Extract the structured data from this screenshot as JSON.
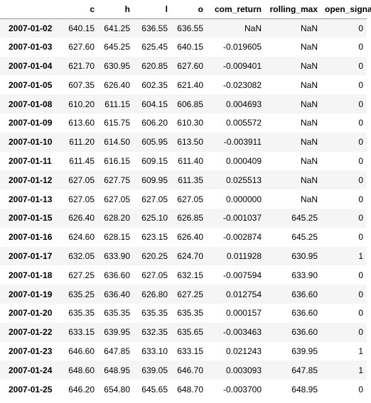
{
  "columns": [
    "",
    "c",
    "h",
    "l",
    "o",
    "com_return",
    "rolling_max",
    "open_signal"
  ],
  "rows": [
    [
      "2007-01-02",
      "640.15",
      "641.25",
      "636.55",
      "636.55",
      "NaN",
      "NaN",
      "0"
    ],
    [
      "2007-01-03",
      "627.60",
      "645.25",
      "625.45",
      "640.15",
      "-0.019605",
      "NaN",
      "0"
    ],
    [
      "2007-01-04",
      "621.70",
      "630.95",
      "620.85",
      "627.60",
      "-0.009401",
      "NaN",
      "0"
    ],
    [
      "2007-01-05",
      "607.35",
      "626.40",
      "602.35",
      "621.40",
      "-0.023082",
      "NaN",
      "0"
    ],
    [
      "2007-01-08",
      "610.20",
      "611.15",
      "604.15",
      "606.85",
      "0.004693",
      "NaN",
      "0"
    ],
    [
      "2007-01-09",
      "613.60",
      "615.75",
      "606.20",
      "610.30",
      "0.005572",
      "NaN",
      "0"
    ],
    [
      "2007-01-10",
      "611.20",
      "614.50",
      "605.95",
      "613.50",
      "-0.003911",
      "NaN",
      "0"
    ],
    [
      "2007-01-11",
      "611.45",
      "616.15",
      "609.15",
      "611.40",
      "0.000409",
      "NaN",
      "0"
    ],
    [
      "2007-01-12",
      "627.05",
      "627.75",
      "609.95",
      "611.35",
      "0.025513",
      "NaN",
      "0"
    ],
    [
      "2007-01-13",
      "627.05",
      "627.05",
      "627.05",
      "627.05",
      "0.000000",
      "NaN",
      "0"
    ],
    [
      "2007-01-15",
      "626.40",
      "628.20",
      "625.10",
      "626.85",
      "-0.001037",
      "645.25",
      "0"
    ],
    [
      "2007-01-16",
      "624.60",
      "628.15",
      "623.15",
      "626.40",
      "-0.002874",
      "645.25",
      "0"
    ],
    [
      "2007-01-17",
      "632.05",
      "633.90",
      "620.25",
      "624.70",
      "0.011928",
      "630.95",
      "1"
    ],
    [
      "2007-01-18",
      "627.25",
      "636.60",
      "627.05",
      "632.15",
      "-0.007594",
      "633.90",
      "0"
    ],
    [
      "2007-01-19",
      "635.25",
      "636.40",
      "626.80",
      "627.25",
      "0.012754",
      "636.60",
      "0"
    ],
    [
      "2007-01-20",
      "635.35",
      "635.35",
      "635.35",
      "635.35",
      "0.000157",
      "636.60",
      "0"
    ],
    [
      "2007-01-22",
      "633.15",
      "639.95",
      "632.35",
      "635.65",
      "-0.003463",
      "636.60",
      "0"
    ],
    [
      "2007-01-23",
      "646.60",
      "647.85",
      "633.10",
      "633.15",
      "0.021243",
      "639.95",
      "1"
    ],
    [
      "2007-01-24",
      "648.60",
      "648.95",
      "639.05",
      "646.70",
      "0.003093",
      "647.85",
      "1"
    ],
    [
      "2007-01-25",
      "646.20",
      "654.80",
      "645.65",
      "648.70",
      "-0.003700",
      "648.95",
      "0"
    ]
  ]
}
